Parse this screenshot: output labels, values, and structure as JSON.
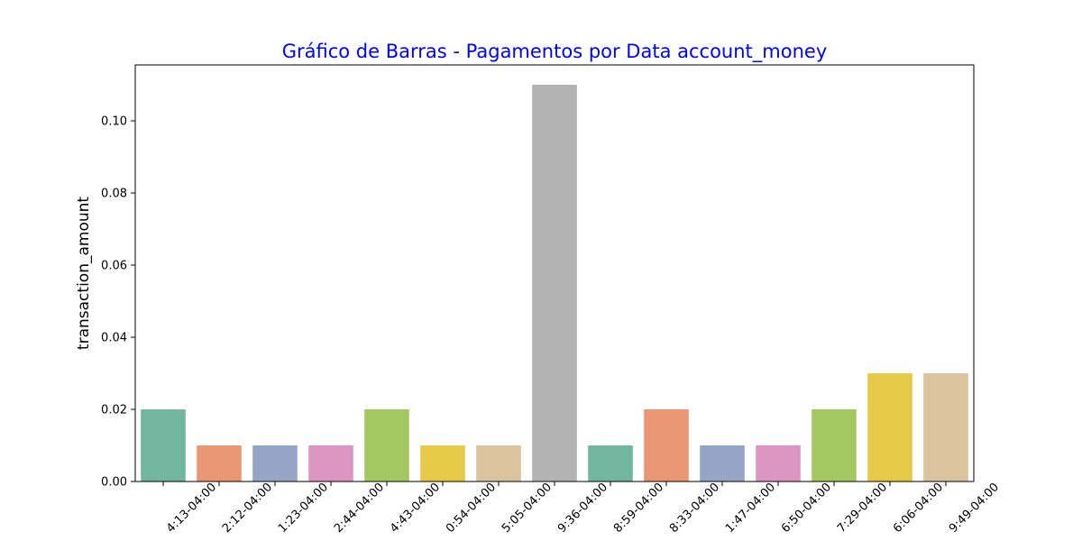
{
  "chart_data": {
    "type": "bar",
    "title": "Gráfico de Barras - Pagamentos por Data account_money",
    "title_color": "#0000ff",
    "xlabel": "",
    "ylabel": "transaction_amount",
    "ylim": [
      0,
      0.1155
    ],
    "y_ticks": [
      "0.00",
      "0.02",
      "0.04",
      "0.06",
      "0.08",
      "0.10"
    ],
    "y_tick_values": [
      0,
      0.02,
      0.04,
      0.06,
      0.08,
      0.1
    ],
    "grid": false,
    "categories": [
      "4:13-04:00",
      "2:12-04:00",
      "1:23-04:00",
      "2:44-04:00",
      "4:43-04:00",
      "0:54-04:00",
      "5:05-04:00",
      "9:36-04:00",
      "8:59-04:00",
      "8:33-04:00",
      "1:47-04:00",
      "6:50-04:00",
      "7:29-04:00",
      "6:06-04:00",
      "9:49-04:00"
    ],
    "values": [
      0.02,
      0.01,
      0.01,
      0.01,
      0.02,
      0.01,
      0.01,
      0.11,
      0.01,
      0.02,
      0.01,
      0.01,
      0.02,
      0.03,
      0.03
    ],
    "colors": [
      "#73b6a0",
      "#e99675",
      "#96a5c5",
      "#db97c2",
      "#a3c862",
      "#e6ca47",
      "#dbc39f",
      "#b3b3b3",
      "#73b6a0",
      "#e99675",
      "#96a5c5",
      "#db97c2",
      "#a3c862",
      "#e6ca47",
      "#dbc39f"
    ]
  }
}
